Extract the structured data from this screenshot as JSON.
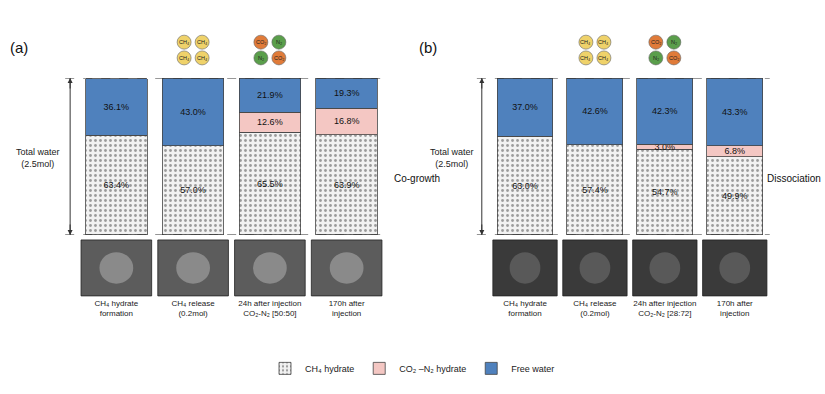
{
  "chart_data": [
    {
      "type": "bar",
      "title": "(a)",
      "stacked": true,
      "data_labels": true,
      "tick_labels": "x",
      "legend": "bottom",
      "ylabel": "Total water\n(2.5mol)",
      "annotations": [
        "Co-growth"
      ],
      "categories": [
        "CH₄ hydrate\nformation",
        "CH₄ release\n(0.2mol)",
        "24h after injection\nCO₂-N₂ [50:50]",
        "170h after\ninjection"
      ],
      "ylim": [
        0,
        100
      ],
      "yticks": [],
      "series": [
        {
          "name": "CH₄ hydrate",
          "color": "#f2f2f2",
          "marker": "dots",
          "values": [
            63.4,
            57.0,
            65.5,
            63.9
          ],
          "value_labels": [
            "63.4%",
            "57.0%",
            "65.5%",
            "63.9%"
          ]
        },
        {
          "name": "CO₂ –N₂ hydrate",
          "color": "#f4c7c3",
          "values": [
            null,
            null,
            12.6,
            16.8
          ],
          "value_labels": [
            null,
            null,
            "12.6%",
            "16.8%"
          ]
        },
        {
          "name": "Free water",
          "color": "#4f81bd",
          "values": [
            36.1,
            43.0,
            21.9,
            19.3
          ],
          "value_labels": [
            "36.1%",
            "43.0%",
            "21.9%",
            "19.3%"
          ]
        }
      ],
      "molecules": [
        [],
        [
          {
            "label": "CH₄",
            "color": "#efd26a"
          },
          {
            "label": "CH₄",
            "color": "#efd26a"
          },
          {
            "label": "CH₄",
            "color": "#efd26a"
          },
          {
            "label": "CH₄",
            "color": "#efd26a"
          }
        ],
        [
          {
            "label": "CO₂",
            "color": "#e07b39"
          },
          {
            "label": "N₂",
            "color": "#5a9e4b"
          },
          {
            "label": "N₂",
            "color": "#5a9e4b"
          },
          {
            "label": "CO₂",
            "color": "#e07b39"
          }
        ],
        []
      ]
    },
    {
      "type": "bar",
      "title": "(b)",
      "stacked": true,
      "data_labels": true,
      "tick_labels": "x",
      "legend": "bottom",
      "ylabel": "Total water\n(2.5mol)",
      "annotations": [
        "Dissociation"
      ],
      "categories": [
        "CH₄ hydrate\nformation",
        "CH₄ release\n(0.2mol)",
        "24h after injection\nCO₂-N₂ [28:72]",
        "170h after\ninjection"
      ],
      "ylim": [
        0,
        100
      ],
      "yticks": [],
      "series": [
        {
          "name": "CH₄ hydrate",
          "color": "#f2f2f2",
          "marker": "dots",
          "values": [
            63.0,
            57.4,
            54.7,
            49.9
          ],
          "value_labels": [
            "63.0%",
            "57.4%",
            "54.7%",
            "49.9%"
          ]
        },
        {
          "name": "CO₂ –N₂ hydrate",
          "color": "#f4c7c3",
          "values": [
            null,
            null,
            3.0,
            6.8
          ],
          "value_labels": [
            null,
            null,
            "3.0%",
            "6.8%"
          ]
        },
        {
          "name": "Free water",
          "color": "#4f81bd",
          "values": [
            37.0,
            42.6,
            42.3,
            43.3
          ],
          "value_labels": [
            "37.0%",
            "42.6%",
            "42.3%",
            "43.3%"
          ]
        }
      ],
      "molecules": [
        [],
        [
          {
            "label": "CH₄",
            "color": "#efd26a"
          },
          {
            "label": "CH₄",
            "color": "#efd26a"
          },
          {
            "label": "CH₄",
            "color": "#efd26a"
          },
          {
            "label": "CH₄",
            "color": "#efd26a"
          }
        ],
        [
          {
            "label": "CO₂",
            "color": "#e07b39"
          },
          {
            "label": "N₂",
            "color": "#5a9e4b"
          },
          {
            "label": "N₂",
            "color": "#5a9e4b"
          },
          {
            "label": "CO₂",
            "color": "#e07b39"
          }
        ],
        []
      ]
    }
  ]
}
